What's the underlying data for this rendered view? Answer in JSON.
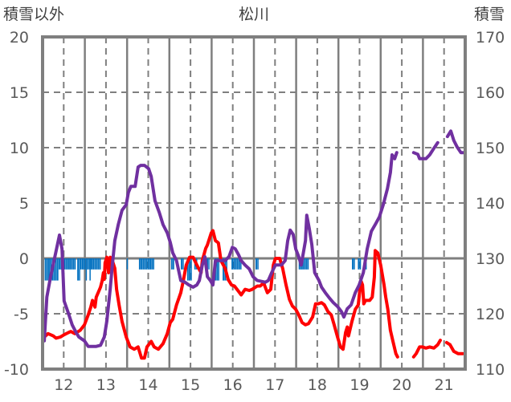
{
  "chart_data": {
    "type": "line",
    "title": "松川",
    "ylabel_left": "積雪以外",
    "ylabel_right": "積雪",
    "xlim": [
      11.5,
      21.5
    ],
    "ylim_left": [
      -10,
      20
    ],
    "ylim_right": [
      110,
      170
    ],
    "x_ticks": [
      "12",
      "13",
      "14",
      "15",
      "16",
      "17",
      "18",
      "19",
      "20",
      "21"
    ],
    "y_ticks_left": [
      "20",
      "15",
      "10",
      "5",
      "0",
      "-5",
      "-10"
    ],
    "y_ticks_right": [
      "170",
      "160",
      "150",
      "140",
      "130",
      "120",
      "110"
    ],
    "grid": true,
    "colors": {
      "red_series": "#ff0000",
      "purple_series": "#7030a0",
      "bars": "#0070c0",
      "axis": "#7f7f7f"
    },
    "series": [
      {
        "name": "red",
        "axis": "left",
        "segments": [
          [
            [
              11.54,
              -7.1
            ],
            [
              11.63,
              -6.8
            ],
            [
              11.75,
              -7.0
            ],
            [
              11.82,
              -7.2
            ],
            [
              11.92,
              -7.1
            ],
            [
              12.01,
              -6.9
            ],
            [
              12.11,
              -6.7
            ],
            [
              12.17,
              -6.6
            ],
            [
              12.26,
              -6.8
            ],
            [
              12.39,
              -6.5
            ],
            [
              12.49,
              -6.0
            ],
            [
              12.58,
              -5.1
            ],
            [
              12.64,
              -4.4
            ],
            [
              12.68,
              -3.8
            ],
            [
              12.74,
              -4.4
            ],
            [
              12.77,
              -3.5
            ],
            [
              12.87,
              -2.6
            ],
            [
              12.91,
              -2.0
            ],
            [
              12.94,
              -1.3
            ],
            [
              12.96,
              -1.9
            ],
            [
              12.98,
              -0.4
            ],
            [
              13.02,
              0.1
            ],
            [
              13.06,
              -1.3
            ],
            [
              13.1,
              0.1
            ],
            [
              13.15,
              -0.2
            ],
            [
              13.21,
              -0.9
            ],
            [
              13.25,
              -2.8
            ],
            [
              13.31,
              -4.2
            ],
            [
              13.38,
              -5.7
            ],
            [
              13.48,
              -7.1
            ],
            [
              13.57,
              -8.0
            ],
            [
              13.67,
              -8.2
            ],
            [
              13.76,
              -8.0
            ],
            [
              13.84,
              -9.0
            ],
            [
              13.91,
              -9.0
            ],
            [
              13.97,
              -8.0
            ],
            [
              14.07,
              -7.5
            ],
            [
              14.14,
              -8.0
            ],
            [
              14.24,
              -8.2
            ],
            [
              14.35,
              -7.7
            ],
            [
              14.45,
              -6.8
            ],
            [
              14.52,
              -5.8
            ],
            [
              14.58,
              -5.5
            ],
            [
              14.67,
              -4.2
            ],
            [
              14.77,
              -3.1
            ],
            [
              14.83,
              -2.0
            ],
            [
              14.9,
              -0.6
            ],
            [
              14.98,
              0.1
            ],
            [
              15.06,
              0.1
            ],
            [
              15.15,
              -0.6
            ],
            [
              15.25,
              -1.3
            ],
            [
              15.28,
              -0.2
            ],
            [
              15.36,
              0.9
            ],
            [
              15.4,
              1.2
            ],
            [
              15.49,
              2.3
            ],
            [
              15.53,
              2.5
            ],
            [
              15.59,
              1.6
            ],
            [
              15.66,
              1.4
            ],
            [
              15.72,
              -0.2
            ],
            [
              15.82,
              -0.9
            ],
            [
              15.89,
              -1.9
            ],
            [
              15.97,
              -2.4
            ],
            [
              16.04,
              -2.5
            ],
            [
              16.14,
              -3.0
            ],
            [
              16.2,
              -3.3
            ],
            [
              16.29,
              -2.8
            ],
            [
              16.39,
              -2.9
            ],
            [
              16.46,
              -2.8
            ],
            [
              16.58,
              -2.5
            ],
            [
              16.65,
              -2.5
            ],
            [
              16.73,
              -2.2
            ],
            [
              16.82,
              -3.1
            ],
            [
              16.9,
              -2.8
            ],
            [
              16.96,
              -0.6
            ],
            [
              17.01,
              0.0
            ],
            [
              17.11,
              0.0
            ],
            [
              17.18,
              -0.9
            ],
            [
              17.26,
              -2.4
            ],
            [
              17.34,
              -3.7
            ],
            [
              17.41,
              -4.3
            ],
            [
              17.49,
              -4.6
            ],
            [
              17.56,
              -5.1
            ],
            [
              17.64,
              -5.8
            ],
            [
              17.72,
              -6.0
            ],
            [
              17.79,
              -5.9
            ],
            [
              17.89,
              -5.3
            ],
            [
              17.96,
              -4.1
            ],
            [
              18.02,
              -4.1
            ],
            [
              18.1,
              -4.0
            ],
            [
              18.17,
              -4.2
            ],
            [
              18.25,
              -4.8
            ],
            [
              18.33,
              -5.1
            ],
            [
              18.4,
              -6.0
            ],
            [
              18.48,
              -7.1
            ],
            [
              18.55,
              -8.0
            ],
            [
              18.61,
              -8.2
            ],
            [
              18.67,
              -6.7
            ],
            [
              18.71,
              -6.2
            ],
            [
              18.74,
              -7.0
            ],
            [
              18.82,
              -5.7
            ],
            [
              18.9,
              -4.6
            ],
            [
              18.97,
              -4.2
            ],
            [
              19.03,
              -2.0
            ],
            [
              19.07,
              -2.4
            ],
            [
              19.1,
              -4.1
            ],
            [
              19.14,
              -3.8
            ],
            [
              19.24,
              -3.8
            ],
            [
              19.3,
              -3.5
            ],
            [
              19.35,
              -1.7
            ],
            [
              19.37,
              0.7
            ],
            [
              19.43,
              0.5
            ],
            [
              19.5,
              -0.6
            ],
            [
              19.58,
              -2.4
            ],
            [
              19.62,
              -3.5
            ],
            [
              19.67,
              -4.6
            ],
            [
              19.73,
              -6.5
            ],
            [
              19.79,
              -7.5
            ],
            [
              19.86,
              -8.6
            ],
            [
              19.9,
              -8.9
            ]
          ],
          [
            [
              20.28,
              -8.9
            ],
            [
              20.34,
              -8.6
            ],
            [
              20.42,
              -8.0
            ],
            [
              20.49,
              -8.0
            ],
            [
              20.57,
              -8.1
            ],
            [
              20.66,
              -8.0
            ],
            [
              20.76,
              -8.1
            ],
            [
              20.85,
              -7.8
            ],
            [
              20.91,
              -7.4
            ]
          ],
          [
            [
              21.06,
              -7.6
            ],
            [
              21.14,
              -7.8
            ],
            [
              21.23,
              -8.4
            ],
            [
              21.33,
              -8.6
            ],
            [
              21.44,
              -8.6
            ]
          ]
        ]
      },
      {
        "name": "purple",
        "axis": "right",
        "segments": [
          [
            [
              11.54,
              115.1
            ],
            [
              11.6,
              123.0
            ],
            [
              11.69,
              126.7
            ],
            [
              11.79,
              130.3
            ],
            [
              11.9,
              134.2
            ],
            [
              11.96,
              131.7
            ],
            [
              12.01,
              122.3
            ],
            [
              12.11,
              120.1
            ],
            [
              12.2,
              118.0
            ],
            [
              12.3,
              116.5
            ],
            [
              12.36,
              115.8
            ],
            [
              12.49,
              115.1
            ],
            [
              12.58,
              114.1
            ],
            [
              12.77,
              114.1
            ],
            [
              12.87,
              114.3
            ],
            [
              12.96,
              115.8
            ],
            [
              13.02,
              118.7
            ],
            [
              13.1,
              124.5
            ],
            [
              13.15,
              128.8
            ],
            [
              13.21,
              133.2
            ],
            [
              13.29,
              136.1
            ],
            [
              13.38,
              138.7
            ],
            [
              13.48,
              139.7
            ],
            [
              13.53,
              141.9
            ],
            [
              13.59,
              143.0
            ],
            [
              13.69,
              143.0
            ],
            [
              13.76,
              146.5
            ],
            [
              13.82,
              146.8
            ],
            [
              13.91,
              146.8
            ],
            [
              14.01,
              146.2
            ],
            [
              14.07,
              144.8
            ],
            [
              14.16,
              140.4
            ],
            [
              14.26,
              138.3
            ],
            [
              14.35,
              136.1
            ],
            [
              14.45,
              134.6
            ],
            [
              14.52,
              132.9
            ],
            [
              14.58,
              131.0
            ],
            [
              14.67,
              129.6
            ],
            [
              14.77,
              126.0
            ],
            [
              14.87,
              125.7
            ],
            [
              14.96,
              125.2
            ],
            [
              15.06,
              124.8
            ],
            [
              15.15,
              125.2
            ],
            [
              15.21,
              126.0
            ],
            [
              15.28,
              128.8
            ],
            [
              15.34,
              130.3
            ],
            [
              15.4,
              126.7
            ],
            [
              15.47,
              126.0
            ],
            [
              15.53,
              125.2
            ],
            [
              15.59,
              129.6
            ],
            [
              15.82,
              129.6
            ],
            [
              15.91,
              130.3
            ],
            [
              15.99,
              132.0
            ],
            [
              16.06,
              131.7
            ],
            [
              16.14,
              130.6
            ],
            [
              16.2,
              129.6
            ],
            [
              16.29,
              128.8
            ],
            [
              16.39,
              128.1
            ],
            [
              16.48,
              126.7
            ],
            [
              16.58,
              126.0
            ],
            [
              16.77,
              125.7
            ],
            [
              16.84,
              126.0
            ],
            [
              16.92,
              127.4
            ],
            [
              17.01,
              128.8
            ],
            [
              17.15,
              128.8
            ],
            [
              17.24,
              129.6
            ],
            [
              17.3,
              133.2
            ],
            [
              17.36,
              135.1
            ],
            [
              17.43,
              134.3
            ],
            [
              17.49,
              131.7
            ],
            [
              17.56,
              130.3
            ],
            [
              17.62,
              128.8
            ],
            [
              17.72,
              133.2
            ],
            [
              17.75,
              137.8
            ],
            [
              17.81,
              135.4
            ],
            [
              17.87,
              132.5
            ],
            [
              17.94,
              127.4
            ],
            [
              18.04,
              126.0
            ],
            [
              18.1,
              124.8
            ],
            [
              18.19,
              123.8
            ],
            [
              18.29,
              122.8
            ],
            [
              18.38,
              122.0
            ],
            [
              18.48,
              121.3
            ],
            [
              18.57,
              120.4
            ],
            [
              18.63,
              119.4
            ],
            [
              18.71,
              120.9
            ],
            [
              18.8,
              121.6
            ],
            [
              18.9,
              123.8
            ],
            [
              18.99,
              125.2
            ],
            [
              19.09,
              127.4
            ],
            [
              19.18,
              131.7
            ],
            [
              19.28,
              134.9
            ],
            [
              19.37,
              136.1
            ],
            [
              19.47,
              137.5
            ],
            [
              19.56,
              139.7
            ],
            [
              19.66,
              142.6
            ],
            [
              19.73,
              145.5
            ],
            [
              19.77,
              148.7
            ],
            [
              19.83,
              148.0
            ],
            [
              19.88,
              149.1
            ]
          ],
          [
            [
              20.28,
              149.1
            ],
            [
              20.38,
              148.8
            ],
            [
              20.42,
              148.0
            ],
            [
              20.57,
              148.0
            ],
            [
              20.66,
              148.7
            ],
            [
              20.76,
              149.9
            ],
            [
              20.85,
              150.9
            ]
          ],
          [
            [
              21.08,
              152.0
            ],
            [
              21.16,
              153.0
            ],
            [
              21.23,
              151.3
            ],
            [
              21.31,
              150.1
            ],
            [
              21.4,
              149.1
            ],
            [
              21.46,
              149.1
            ]
          ]
        ]
      }
    ],
    "bars": {
      "name": "blue",
      "axis": "left",
      "bin_days": 0.0417,
      "runs": [
        [
          11.55,
          11.88,
          -2
        ],
        [
          11.88,
          12.26,
          -1
        ],
        [
          12.32,
          12.37,
          -2
        ],
        [
          12.39,
          12.87,
          -1
        ],
        [
          12.52,
          12.55,
          -2
        ],
        [
          12.61,
          12.64,
          -2
        ],
        [
          13.49,
          13.52,
          -1
        ],
        [
          13.78,
          14.12,
          -1
        ],
        [
          14.54,
          14.62,
          -1
        ],
        [
          14.77,
          14.83,
          -1
        ],
        [
          14.92,
          15.02,
          -2
        ],
        [
          15.09,
          15.15,
          -1
        ],
        [
          15.38,
          15.44,
          -1
        ],
        [
          15.57,
          15.66,
          -2
        ],
        [
          15.76,
          15.85,
          -2
        ],
        [
          15.97,
          16.2,
          -1
        ],
        [
          16.54,
          16.6,
          -1
        ],
        [
          17.56,
          17.77,
          -1
        ],
        [
          18.82,
          18.88,
          -1
        ],
        [
          18.96,
          19.04,
          -1
        ],
        [
          19.1,
          19.16,
          -1
        ]
      ]
    }
  }
}
